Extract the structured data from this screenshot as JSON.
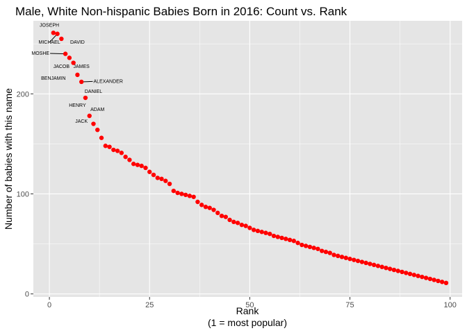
{
  "chart_data": {
    "type": "scatter",
    "title": "Male, White Non-hispanic Babies Born in 2016: Count vs. Rank",
    "xlabel": "Rank",
    "xlabel_sub": "(1 = most popular)",
    "ylabel": "Number of babies with this name",
    "xlim": [
      -4,
      103
    ],
    "ylim": [
      -3,
      273
    ],
    "xticks": [
      0,
      25,
      50,
      75,
      100
    ],
    "yticks": [
      0,
      100,
      200
    ],
    "grid": true,
    "point_color": "#ff0000",
    "panel_color": "#e5e5e5",
    "grid_color": "#ffffff",
    "points": [
      {
        "x": 1,
        "y": 261
      },
      {
        "x": 2,
        "y": 260
      },
      {
        "x": 3,
        "y": 255
      },
      {
        "x": 4,
        "y": 240
      },
      {
        "x": 5,
        "y": 236
      },
      {
        "x": 6,
        "y": 231
      },
      {
        "x": 7,
        "y": 219
      },
      {
        "x": 8,
        "y": 212
      },
      {
        "x": 9,
        "y": 196
      },
      {
        "x": 10,
        "y": 178
      },
      {
        "x": 11,
        "y": 170
      },
      {
        "x": 12,
        "y": 164
      },
      {
        "x": 13,
        "y": 156
      },
      {
        "x": 14,
        "y": 148
      },
      {
        "x": 15,
        "y": 147
      },
      {
        "x": 16,
        "y": 144
      },
      {
        "x": 17,
        "y": 143
      },
      {
        "x": 18,
        "y": 141
      },
      {
        "x": 19,
        "y": 137
      },
      {
        "x": 20,
        "y": 134
      },
      {
        "x": 21,
        "y": 130
      },
      {
        "x": 22,
        "y": 129
      },
      {
        "x": 23,
        "y": 128
      },
      {
        "x": 24,
        "y": 126
      },
      {
        "x": 25,
        "y": 122
      },
      {
        "x": 26,
        "y": 119
      },
      {
        "x": 27,
        "y": 116
      },
      {
        "x": 28,
        "y": 115
      },
      {
        "x": 29,
        "y": 113
      },
      {
        "x": 30,
        "y": 110
      },
      {
        "x": 31,
        "y": 103
      },
      {
        "x": 32,
        "y": 101
      },
      {
        "x": 33,
        "y": 100
      },
      {
        "x": 34,
        "y": 99
      },
      {
        "x": 35,
        "y": 98
      },
      {
        "x": 36,
        "y": 97
      },
      {
        "x": 37,
        "y": 92
      },
      {
        "x": 38,
        "y": 89
      },
      {
        "x": 39,
        "y": 87
      },
      {
        "x": 40,
        "y": 86
      },
      {
        "x": 41,
        "y": 84
      },
      {
        "x": 42,
        "y": 81
      },
      {
        "x": 43,
        "y": 78
      },
      {
        "x": 44,
        "y": 77
      },
      {
        "x": 45,
        "y": 74
      },
      {
        "x": 46,
        "y": 72
      },
      {
        "x": 47,
        "y": 71
      },
      {
        "x": 48,
        "y": 69
      },
      {
        "x": 49,
        "y": 68
      },
      {
        "x": 50,
        "y": 66
      },
      {
        "x": 51,
        "y": 64
      },
      {
        "x": 52,
        "y": 63
      },
      {
        "x": 53,
        "y": 62
      },
      {
        "x": 54,
        "y": 61
      },
      {
        "x": 55,
        "y": 60
      },
      {
        "x": 56,
        "y": 58
      },
      {
        "x": 57,
        "y": 57
      },
      {
        "x": 58,
        "y": 56
      },
      {
        "x": 59,
        "y": 55
      },
      {
        "x": 60,
        "y": 54
      },
      {
        "x": 61,
        "y": 53
      },
      {
        "x": 62,
        "y": 51
      },
      {
        "x": 63,
        "y": 49
      },
      {
        "x": 64,
        "y": 48
      },
      {
        "x": 65,
        "y": 47
      },
      {
        "x": 66,
        "y": 46
      },
      {
        "x": 67,
        "y": 45
      },
      {
        "x": 68,
        "y": 43
      },
      {
        "x": 69,
        "y": 42
      },
      {
        "x": 70,
        "y": 41
      },
      {
        "x": 71,
        "y": 39
      },
      {
        "x": 72,
        "y": 38
      },
      {
        "x": 73,
        "y": 37
      },
      {
        "x": 74,
        "y": 36
      },
      {
        "x": 75,
        "y": 35
      },
      {
        "x": 76,
        "y": 34
      },
      {
        "x": 77,
        "y": 33
      },
      {
        "x": 78,
        "y": 32
      },
      {
        "x": 79,
        "y": 31
      },
      {
        "x": 80,
        "y": 30
      },
      {
        "x": 81,
        "y": 29
      },
      {
        "x": 82,
        "y": 28
      },
      {
        "x": 83,
        "y": 27
      },
      {
        "x": 84,
        "y": 26
      },
      {
        "x": 85,
        "y": 25
      },
      {
        "x": 86,
        "y": 24
      },
      {
        "x": 87,
        "y": 23
      },
      {
        "x": 88,
        "y": 22
      },
      {
        "x": 89,
        "y": 21
      },
      {
        "x": 90,
        "y": 20
      },
      {
        "x": 91,
        "y": 19
      },
      {
        "x": 92,
        "y": 18
      },
      {
        "x": 93,
        "y": 17
      },
      {
        "x": 94,
        "y": 16
      },
      {
        "x": 95,
        "y": 15
      },
      {
        "x": 96,
        "y": 14
      },
      {
        "x": 97,
        "y": 13
      },
      {
        "x": 98,
        "y": 12
      },
      {
        "x": 99,
        "y": 11
      }
    ],
    "labels": [
      {
        "text": "JOSEPH",
        "x": 1,
        "y": 261,
        "lx": 0,
        "ly": 267,
        "anchor": "middle"
      },
      {
        "text": "MICHAEL",
        "x": 2,
        "y": 260,
        "lx": 0,
        "ly": 250,
        "anchor": "middle",
        "leader": true
      },
      {
        "text": "DAVID",
        "x": 3,
        "y": 255,
        "lx": 7,
        "ly": 250,
        "anchor": "middle"
      },
      {
        "text": "MOSHE",
        "x": 4,
        "y": 240,
        "lx": 0,
        "ly": 239,
        "anchor": "end",
        "leader": true
      },
      {
        "text": "JACOB",
        "x": 6,
        "y": 231,
        "lx": 3,
        "ly": 226,
        "anchor": "middle"
      },
      {
        "text": "JAMES",
        "x": 5,
        "y": 236,
        "lx": 8,
        "ly": 226,
        "anchor": "middle"
      },
      {
        "text": "BENJAMIN",
        "x": 7,
        "y": 219,
        "lx": 1,
        "ly": 214,
        "anchor": "middle"
      },
      {
        "text": "ALEXANDER",
        "x": 8,
        "y": 212,
        "lx": 11,
        "ly": 211,
        "anchor": "start",
        "leader": true
      },
      {
        "text": "DANIEL",
        "x": 9,
        "y": 196,
        "lx": 11,
        "ly": 201,
        "anchor": "middle"
      },
      {
        "text": "HENRY",
        "x": 11,
        "y": 170,
        "lx": 7,
        "ly": 187,
        "anchor": "middle"
      },
      {
        "text": "ADAM",
        "x": 10,
        "y": 178,
        "lx": 12,
        "ly": 183,
        "anchor": "middle"
      },
      {
        "text": "JACK",
        "x": 12,
        "y": 164,
        "lx": 8,
        "ly": 171,
        "anchor": "middle"
      }
    ]
  }
}
